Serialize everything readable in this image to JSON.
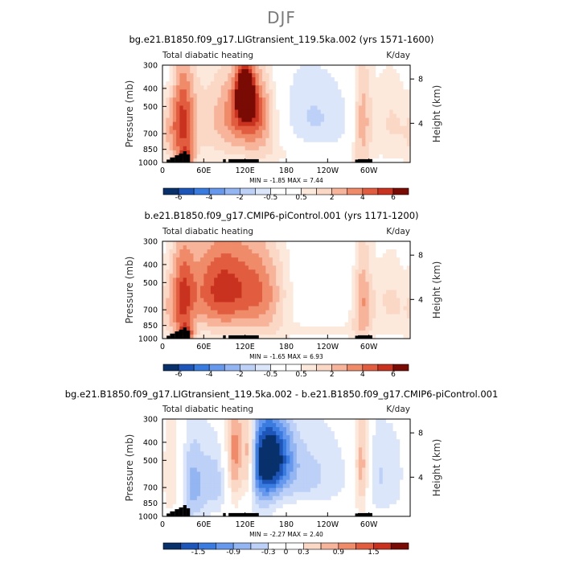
{
  "figure_title": "DJF",
  "colors": {
    "blue_palette": [
      "#08306b",
      "#1d56b8",
      "#3a7be0",
      "#6699ee",
      "#93b5f2",
      "#bdd0f7",
      "#ffffff"
    ],
    "red_palette": [
      "#ffffff",
      "#fbd8c6",
      "#f7b49a",
      "#f08b6a",
      "#e25c40",
      "#c8321f",
      "#7a0a04"
    ],
    "topography": "#000000"
  },
  "chart_data": [
    {
      "type": "heatmap",
      "title": "bg.e21.B1850.f09_g17.LIGtransient_119.5ka.002 (yrs 1571-1600)",
      "left_label": "Total diabatic heating",
      "right_label": "K/day",
      "xlabel": "",
      "ylabel": "Pressure (mb)",
      "ylabel_right": "Height (km)",
      "x_ticks": [
        "0",
        "60E",
        "120E",
        "180",
        "120W",
        "60W"
      ],
      "x_tick_values": [
        0,
        60,
        120,
        180,
        240,
        300
      ],
      "xlim": [
        0,
        360
      ],
      "y_ticks": [
        "300",
        "400",
        "500",
        "700",
        "850",
        "1000"
      ],
      "y_tick_values": [
        300,
        400,
        500,
        700,
        850,
        1000
      ],
      "ylim": [
        1000,
        300
      ],
      "y_scale": "log",
      "right_ticks": [
        "8",
        "4"
      ],
      "right_tick_pressures": [
        356,
        616
      ],
      "stats": "MIN =  -1.85   MAX =    7.44",
      "min": -1.85,
      "max": 7.44,
      "colorbar_labels": [
        "-6",
        "-4",
        "-2",
        "-0.5",
        "0.5",
        "2",
        "4",
        "6"
      ],
      "features": [
        {
          "lon": 30,
          "p": 600,
          "w": 12,
          "h": 320,
          "v": 4.0
        },
        {
          "lon": 35,
          "p": 940,
          "w": 8,
          "h": 70,
          "v": 3.5
        },
        {
          "lon": 12,
          "p": 700,
          "w": 18,
          "h": 220,
          "v": 1.4
        },
        {
          "lon": 90,
          "p": 600,
          "w": 45,
          "h": 260,
          "v": 2.6
        },
        {
          "lon": 125,
          "p": 500,
          "w": 22,
          "h": 180,
          "v": 4.5
        },
        {
          "lon": 120,
          "p": 420,
          "w": 8,
          "h": 80,
          "v": 6.8
        },
        {
          "lon": 150,
          "p": 650,
          "w": 20,
          "h": 220,
          "v": 1.6
        },
        {
          "lon": 205,
          "p": 480,
          "w": 55,
          "h": 200,
          "v": -1.6
        },
        {
          "lon": 230,
          "p": 700,
          "w": 40,
          "h": 180,
          "v": -1.0
        },
        {
          "lon": 180,
          "p": 900,
          "w": 60,
          "h": 80,
          "v": 0.6
        },
        {
          "lon": 240,
          "p": 920,
          "w": 40,
          "h": 60,
          "v": 0.6
        },
        {
          "lon": 290,
          "p": 600,
          "w": 10,
          "h": 320,
          "v": 3.2
        },
        {
          "lon": 330,
          "p": 600,
          "w": 25,
          "h": 240,
          "v": 1.8
        },
        {
          "lon": 355,
          "p": 500,
          "w": 10,
          "h": 200,
          "v": -0.6
        },
        {
          "lon": 10,
          "p": 330,
          "w": 8,
          "h": 60,
          "v": -0.7
        }
      ]
    },
    {
      "type": "heatmap",
      "title": "b.e21.B1850.f09_g17.CMIP6-piControl.001 (yrs 1171-1200)",
      "left_label": "Total diabatic heating",
      "right_label": "K/day",
      "xlabel": "",
      "ylabel": "Pressure (mb)",
      "ylabel_right": "Height (km)",
      "x_ticks": [
        "0",
        "60E",
        "120E",
        "180",
        "120W",
        "60W"
      ],
      "x_tick_values": [
        0,
        60,
        120,
        180,
        240,
        300
      ],
      "xlim": [
        0,
        360
      ],
      "y_ticks": [
        "300",
        "400",
        "500",
        "700",
        "850",
        "1000"
      ],
      "y_tick_values": [
        300,
        400,
        500,
        700,
        850,
        1000
      ],
      "ylim": [
        1000,
        300
      ],
      "y_scale": "log",
      "right_ticks": [
        "8",
        "4"
      ],
      "right_tick_pressures": [
        356,
        616
      ],
      "stats": "MIN =  -1.65   MAX =    6.93",
      "min": -1.65,
      "max": 6.93,
      "colorbar_labels": [
        "-6",
        "-4",
        "-2",
        "-0.5",
        "0.5",
        "2",
        "4",
        "6"
      ],
      "features": [
        {
          "lon": 30,
          "p": 620,
          "w": 12,
          "h": 320,
          "v": 3.6
        },
        {
          "lon": 35,
          "p": 940,
          "w": 8,
          "h": 70,
          "v": 3.5
        },
        {
          "lon": 12,
          "p": 700,
          "w": 18,
          "h": 220,
          "v": 1.4
        },
        {
          "lon": 75,
          "p": 560,
          "w": 30,
          "h": 240,
          "v": 3.2
        },
        {
          "lon": 115,
          "p": 520,
          "w": 45,
          "h": 260,
          "v": 3.6
        },
        {
          "lon": 150,
          "p": 620,
          "w": 25,
          "h": 230,
          "v": 1.8
        },
        {
          "lon": 200,
          "p": 560,
          "w": 35,
          "h": 240,
          "v": -0.7
        },
        {
          "lon": 180,
          "p": 900,
          "w": 60,
          "h": 80,
          "v": 0.6
        },
        {
          "lon": 250,
          "p": 880,
          "w": 40,
          "h": 80,
          "v": 0.7
        },
        {
          "lon": 290,
          "p": 600,
          "w": 10,
          "h": 320,
          "v": 3.2
        },
        {
          "lon": 330,
          "p": 620,
          "w": 25,
          "h": 240,
          "v": 1.8
        },
        {
          "lon": 355,
          "p": 500,
          "w": 10,
          "h": 200,
          "v": -0.6
        },
        {
          "lon": 260,
          "p": 420,
          "w": 40,
          "h": 100,
          "v": -0.6
        }
      ]
    },
    {
      "type": "heatmap",
      "title": "bg.e21.B1850.f09_g17.LIGtransient_119.5ka.002 - b.e21.B1850.f09_g17.CMIP6-piControl.001",
      "left_label": "Total diabatic heating",
      "right_label": "K/day",
      "xlabel": "",
      "ylabel": "Pressure (mb)",
      "ylabel_right": "Height (km)",
      "x_ticks": [
        "0",
        "60E",
        "120E",
        "180",
        "120W",
        "60W"
      ],
      "x_tick_values": [
        0,
        60,
        120,
        180,
        240,
        300
      ],
      "xlim": [
        0,
        360
      ],
      "y_ticks": [
        "300",
        "400",
        "500",
        "700",
        "850",
        "1000"
      ],
      "y_tick_values": [
        300,
        400,
        500,
        700,
        850,
        1000
      ],
      "ylim": [
        1000,
        300
      ],
      "y_scale": "log",
      "right_ticks": [
        "8",
        "4"
      ],
      "right_tick_pressures": [
        356,
        616
      ],
      "stats": "MIN =  -2.27   MAX =    2.40",
      "min": -2.27,
      "max": 2.4,
      "colorbar_labels": [
        "-1.5",
        "-0.9",
        "-0.3",
        "0",
        "0.3",
        "0.9",
        "1.5"
      ],
      "features": [
        {
          "lon": 12,
          "p": 600,
          "w": 14,
          "h": 280,
          "v": 0.9
        },
        {
          "lon": 40,
          "p": 700,
          "w": 12,
          "h": 300,
          "v": -0.8
        },
        {
          "lon": 60,
          "p": 650,
          "w": 20,
          "h": 260,
          "v": -0.5
        },
        {
          "lon": 105,
          "p": 500,
          "w": 10,
          "h": 260,
          "v": 1.8
        },
        {
          "lon": 125,
          "p": 480,
          "w": 6,
          "h": 200,
          "v": 1.5
        },
        {
          "lon": 90,
          "p": 650,
          "w": 20,
          "h": 200,
          "v": -0.6
        },
        {
          "lon": 160,
          "p": 480,
          "w": 20,
          "h": 160,
          "v": -2.1
        },
        {
          "lon": 145,
          "p": 600,
          "w": 15,
          "h": 260,
          "v": -1.0
        },
        {
          "lon": 215,
          "p": 600,
          "w": 40,
          "h": 260,
          "v": -0.7
        },
        {
          "lon": 230,
          "p": 900,
          "w": 30,
          "h": 60,
          "v": 0.4
        },
        {
          "lon": 290,
          "p": 550,
          "w": 8,
          "h": 260,
          "v": 1.4
        },
        {
          "lon": 310,
          "p": 600,
          "w": 15,
          "h": 260,
          "v": -0.5
        },
        {
          "lon": 345,
          "p": 600,
          "w": 20,
          "h": 260,
          "v": -0.5
        }
      ]
    }
  ],
  "topography_blocks": [
    {
      "lon0": 6,
      "lon1": 11,
      "p": 965
    },
    {
      "lon0": 11,
      "lon1": 18,
      "p": 940
    },
    {
      "lon0": 18,
      "lon1": 24,
      "p": 915
    },
    {
      "lon0": 24,
      "lon1": 30,
      "p": 895
    },
    {
      "lon0": 30,
      "lon1": 35,
      "p": 870
    },
    {
      "lon0": 35,
      "lon1": 40,
      "p": 905
    },
    {
      "lon0": 88,
      "lon1": 92,
      "p": 960
    },
    {
      "lon0": 96,
      "lon1": 140,
      "p": 960
    },
    {
      "lon0": 280,
      "lon1": 284,
      "p": 965
    },
    {
      "lon0": 284,
      "lon1": 305,
      "p": 960
    }
  ]
}
